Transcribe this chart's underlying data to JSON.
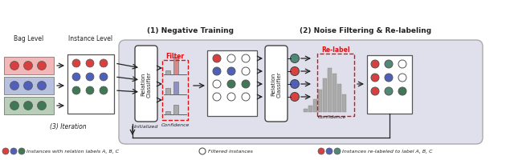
{
  "bag_colors": [
    "#f2b8b8",
    "#b8c0e0",
    "#b8ceb8"
  ],
  "dot_red": "#d84040",
  "dot_blue": "#5060b8",
  "dot_green": "#407855",
  "dot_teal": "#508878",
  "white": "#ffffff",
  "black": "#222222",
  "main_bg": "#e0e0ec",
  "panel_ec": "#999999",
  "red_dash": "#dd1111",
  "arrow_col": "#222222",
  "bar_pink": "#d88888",
  "bar_blue": "#9090c8",
  "bar_gray": "#aaaaaa",
  "bar_outline": "#666666",
  "section1_title": "(1) Negative Training",
  "section2_title": "(2) Noise Filtering & Re-labeling",
  "iter_label": "(3) Iteration",
  "initialized_label": "Initialized",
  "confidence_label": "Confidence",
  "filter_label": "Filter",
  "relabel_label": "Re-label",
  "classifier_label": "Relation\nClassifier",
  "bag_label": "Bag Level",
  "inst_label": "Instance Level",
  "leg1": "Instances with relation labels A, B, C",
  "leg2": "Filtered instances",
  "leg3": "Instances re-labeled to label A, B, C"
}
